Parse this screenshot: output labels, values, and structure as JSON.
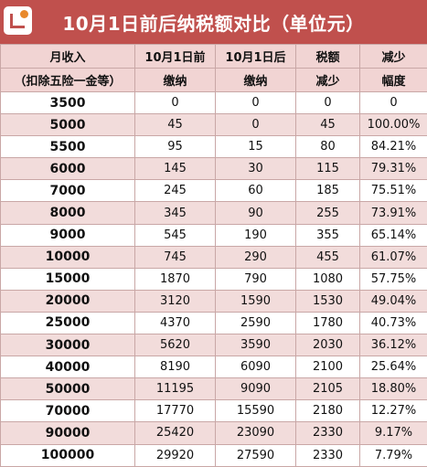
{
  "title": "10月1日前后纳税额对比（单位元）",
  "logo_icon": "logo-icon",
  "headers": {
    "col1": [
      "月收入",
      "（扣除五险一金等）"
    ],
    "col2": [
      "10月1日前",
      "缴纳"
    ],
    "col3": [
      "10月1日后",
      "缴纳"
    ],
    "col4": [
      "税额",
      "减少"
    ],
    "col5": [
      "减少",
      "幅度"
    ]
  },
  "rows": [
    [
      "3500",
      "0",
      "0",
      "0",
      "0"
    ],
    [
      "5000",
      "45",
      "0",
      "45",
      "100.00%"
    ],
    [
      "5500",
      "95",
      "15",
      "80",
      "84.21%"
    ],
    [
      "6000",
      "145",
      "30",
      "115",
      "79.31%"
    ],
    [
      "7000",
      "245",
      "60",
      "185",
      "75.51%"
    ],
    [
      "8000",
      "345",
      "90",
      "255",
      "73.91%"
    ],
    [
      "9000",
      "545",
      "190",
      "355",
      "65.14%"
    ],
    [
      "10000",
      "745",
      "290",
      "455",
      "61.07%"
    ],
    [
      "15000",
      "1870",
      "790",
      "1080",
      "57.75%"
    ],
    [
      "20000",
      "3120",
      "1590",
      "1530",
      "49.04%"
    ],
    [
      "25000",
      "4370",
      "2590",
      "1780",
      "40.73%"
    ],
    [
      "30000",
      "5620",
      "3590",
      "2030",
      "36.12%"
    ],
    [
      "40000",
      "8190",
      "6090",
      "2100",
      "25.64%"
    ],
    [
      "50000",
      "11195",
      "9090",
      "2105",
      "18.80%"
    ],
    [
      "70000",
      "17770",
      "15590",
      "2180",
      "12.27%"
    ],
    [
      "90000",
      "25420",
      "23090",
      "2330",
      "9.17%"
    ],
    [
      "100000",
      "29920",
      "27590",
      "2330",
      "7.79%"
    ]
  ],
  "colors": {
    "title_bg": "#c0504d",
    "header_bg": "#f1d4d3",
    "stripe_bg": "#f2dcdb"
  }
}
